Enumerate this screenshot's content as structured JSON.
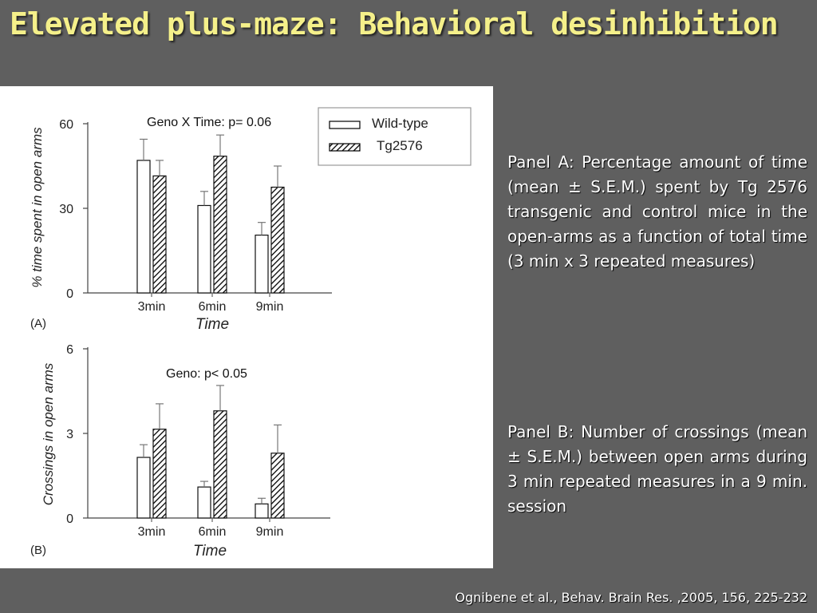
{
  "slide": {
    "title": "Elevated plus-maze: Behavioral desinhibition",
    "panel_a_text": "Panel A: Percentage amount of time (mean ± S.E.M.) spent by Tg 2576 transgenic and control mice  in the open-arms as a function of total time (3 min x 3 repeated measures)",
    "panel_b_text": "Panel B: Number of crossings (mean ± S.E.M.) between open arms during 3 min repeated measures in a 9 min. session",
    "citation": "Ognibene et al., Behav. Brain Res. ,2005, 156, 225-232"
  },
  "legend": {
    "wild": "Wild-type",
    "tg": "Tg2576"
  },
  "chart_data": [
    {
      "type": "bar",
      "panel_label": "(A)",
      "annotation": "Geno X Time: p= 0.06",
      "xlabel": "Time",
      "ylabel": "% time spent in open arms",
      "categories": [
        "3min",
        "6min",
        "9min"
      ],
      "yticks": [
        "0",
        "30",
        "60"
      ],
      "ylim": [
        0,
        60
      ],
      "series": [
        {
          "name": "Wild-type",
          "values": [
            47,
            31,
            20.5
          ],
          "sem": [
            7.5,
            5,
            4.5
          ],
          "color": "#ffffff",
          "pattern": "none"
        },
        {
          "name": "Tg2576",
          "values": [
            41.5,
            48.5,
            37.5
          ],
          "sem": [
            5.5,
            7.5,
            7.5
          ],
          "color": "#ffffff",
          "pattern": "hatched"
        }
      ]
    },
    {
      "type": "bar",
      "panel_label": "(B)",
      "annotation": "Geno: p< 0.05",
      "xlabel": "Time",
      "ylabel": "Crossings in open arms",
      "categories": [
        "3min",
        "6min",
        "9min"
      ],
      "yticks": [
        "0",
        "3",
        "6"
      ],
      "ylim": [
        0,
        6
      ],
      "series": [
        {
          "name": "Wild-type",
          "values": [
            2.15,
            1.1,
            0.5
          ],
          "sem": [
            0.45,
            0.2,
            0.2
          ],
          "color": "#ffffff",
          "pattern": "none"
        },
        {
          "name": "Tg2576",
          "values": [
            3.15,
            3.8,
            2.3
          ],
          "sem": [
            0.9,
            0.9,
            1.0
          ],
          "color": "#ffffff",
          "pattern": "hatched"
        }
      ]
    }
  ]
}
